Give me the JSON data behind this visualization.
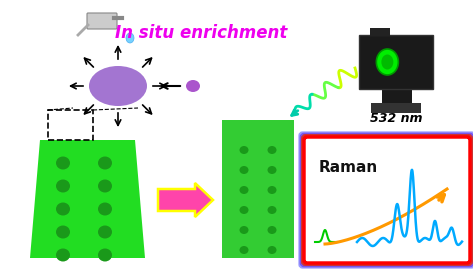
{
  "bg_color": "#ffffff",
  "title_text": "In situ enrichment",
  "title_color": "#ee00ee",
  "title_fontsize": 12,
  "laser_text": "532 nm",
  "spot_color": "#9966cc",
  "spot_small_color": "#aa55cc",
  "tlc1_color": "#22dd22",
  "tlc2_color": "#33cc33",
  "spot_dark_color": "#1a991a",
  "arrow_pink": "#ff44aa",
  "arrow_yellow_edge": "#ffff00",
  "raman_border_colors": [
    "#8888ff",
    "#aa44ff",
    "#cc2222",
    "#ff0000"
  ],
  "raman_text_color": "#111111",
  "orange_color": "#ff9900",
  "blue_color": "#00aaff",
  "green_peak_color": "#00cc00"
}
